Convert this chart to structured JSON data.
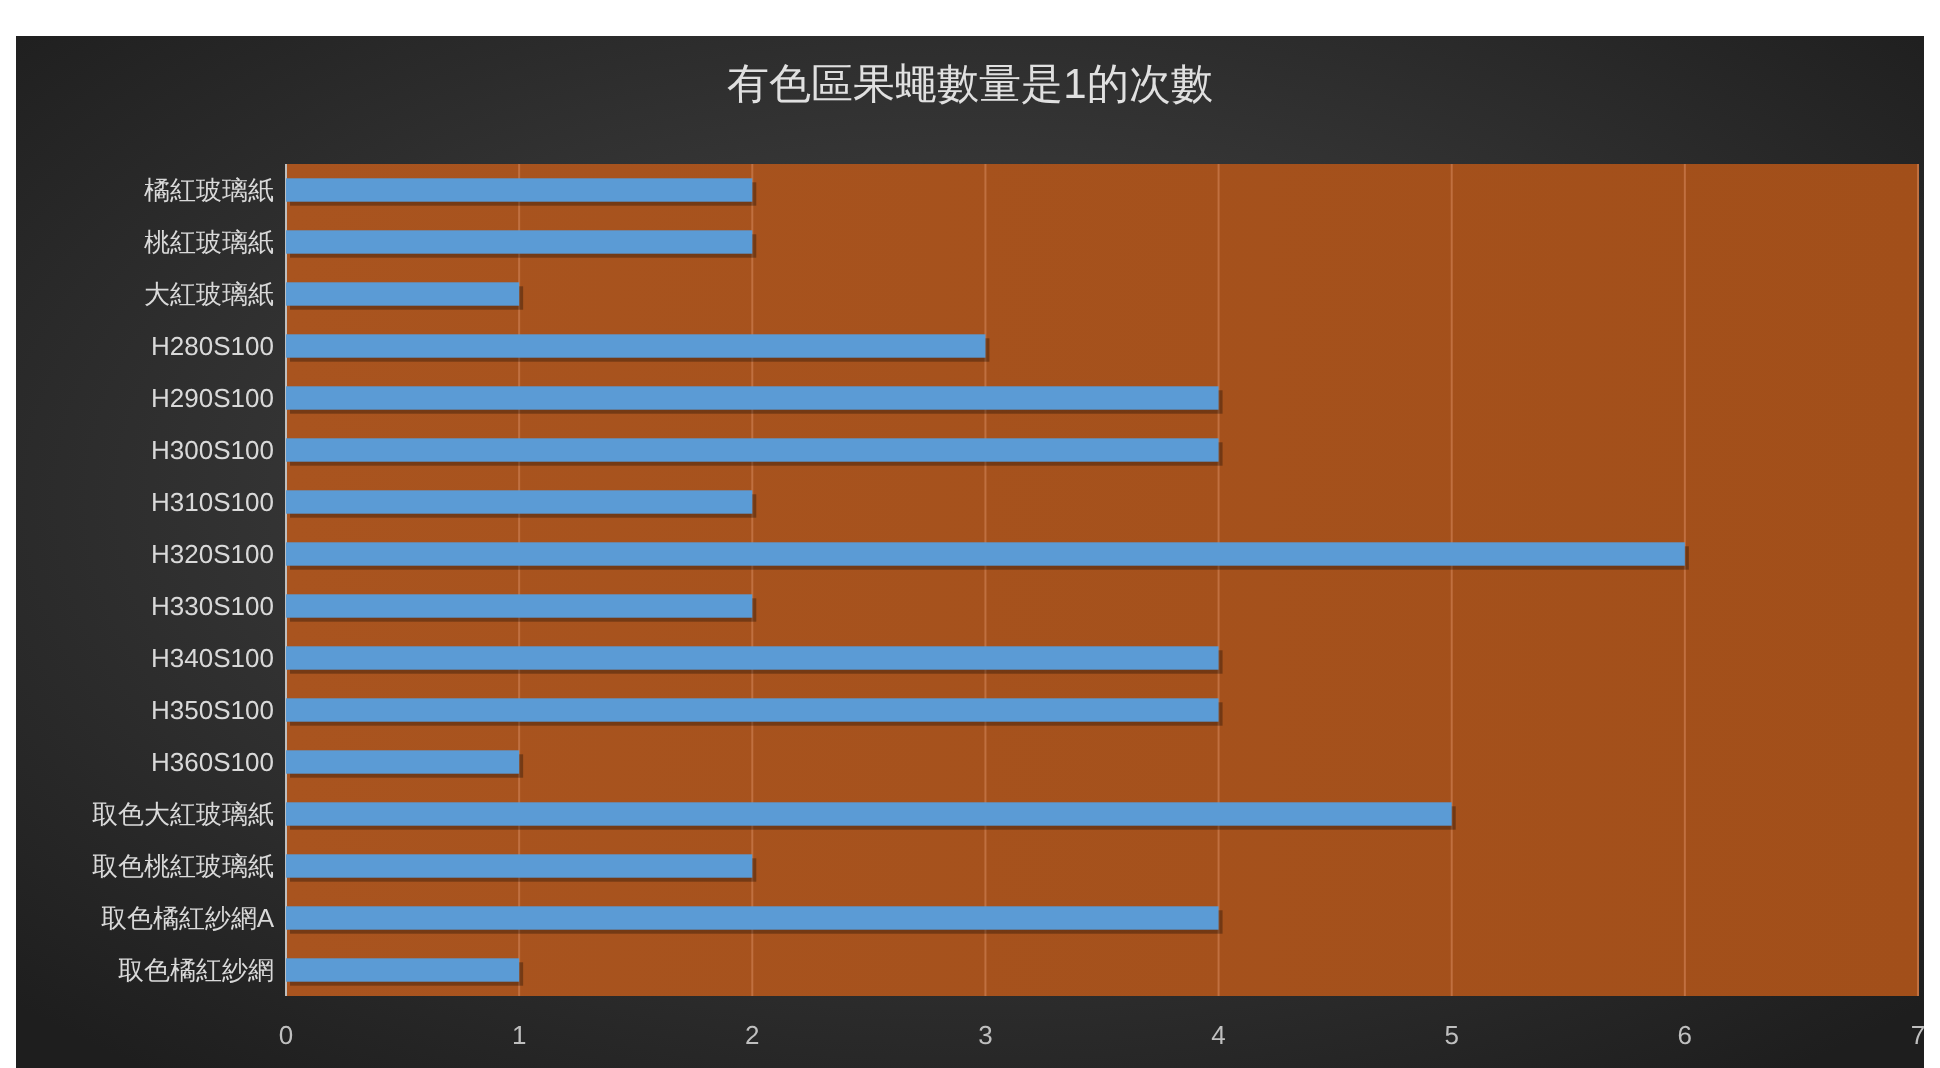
{
  "chart_data": {
    "type": "bar",
    "orientation": "horizontal",
    "title": "有色區果蠅數量是1的次數",
    "categories": [
      "橘紅玻璃紙",
      "桃紅玻璃紙",
      "大紅玻璃紙",
      "H280S100",
      "H290S100",
      "H300S100",
      "H310S100",
      "H320S100",
      "H330S100",
      "H340S100",
      "H350S100",
      "H360S100",
      "取色大紅玻璃紙",
      "取色桃紅玻璃紙",
      "取色橘紅紗網A",
      "取色橘紅紗網"
    ],
    "values": [
      2,
      2,
      1,
      3,
      4,
      4,
      2,
      6,
      2,
      4,
      4,
      1,
      5,
      2,
      4,
      1
    ],
    "color": "#5b9bd5",
    "xlim": [
      0,
      7
    ],
    "xticks": [
      0,
      1,
      2,
      3,
      4,
      5,
      6,
      7
    ],
    "grid": "x"
  }
}
